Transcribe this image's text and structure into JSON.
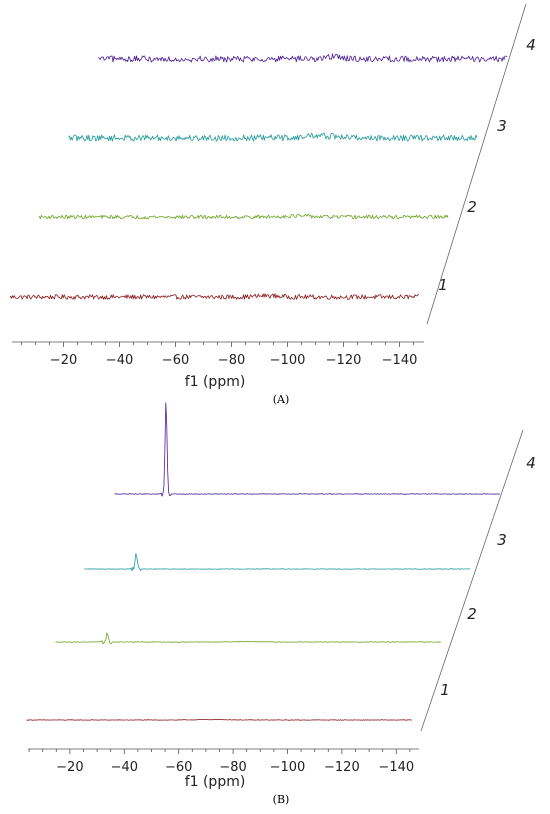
{
  "chart_data": [
    {
      "panel_label": "(A)",
      "type": "line",
      "xlabel": "f1 (ppm)",
      "x_ticks": [
        -20,
        -40,
        -60,
        -80,
        -100,
        -120,
        -140
      ],
      "x_tick_labels": [
        "−20",
        "−40",
        "−60",
        "−80",
        "−100",
        "−120",
        "−140"
      ],
      "xlim": [
        -1,
        -148
      ],
      "grid": false,
      "series": [
        {
          "name": "1",
          "color": "#8b1a1a",
          "x_range": [
            -1,
            -147
          ],
          "features": [
            {
              "center": -93,
              "height": 0.5,
              "width": 4,
              "kind": "hump"
            }
          ],
          "noise": 0.9
        },
        {
          "name": "2",
          "color": "#6aa321",
          "x_range": [
            -1,
            -147
          ],
          "features": [
            {
              "center": -93,
              "height": 0.4,
              "width": 5,
              "kind": "hump"
            }
          ],
          "noise": 0.7
        },
        {
          "name": "3",
          "color": "#239a9a",
          "x_range": [
            -1,
            -147
          ],
          "features": [
            {
              "center": -86,
              "height": 1.0,
              "width": 3,
              "kind": "step"
            }
          ],
          "noise": 1.2
        },
        {
          "name": "4",
          "color": "#4a1d96",
          "x_range": [
            -1,
            -147
          ],
          "features": [
            {
              "center": -85,
              "height": 0.9,
              "width": 3,
              "kind": "hump"
            }
          ],
          "noise": 1.2
        }
      ]
    },
    {
      "panel_label": "(B)",
      "type": "line",
      "xlabel": "f1 (ppm)",
      "x_ticks": [
        -20,
        -40,
        -60,
        -80,
        -100,
        -120,
        -140
      ],
      "x_tick_labels": [
        "−20",
        "−40",
        "−60",
        "−80",
        "−100",
        "−120",
        "−140"
      ],
      "xlim": [
        -3,
        -148
      ],
      "grid": false,
      "series": [
        {
          "name": "1",
          "color": "#8b1a1a",
          "x_range": [
            -4,
            -146
          ],
          "features": [
            {
              "center": -73,
              "height": 0.4,
              "width": 6,
              "kind": "hump"
            }
          ],
          "noise": 0.25
        },
        {
          "name": "2",
          "color": "#6aa321",
          "x_range": [
            -4,
            -146
          ],
          "features": [
            {
              "center": -23,
              "height": 1.0,
              "width": 0.35,
              "kind": "peak"
            },
            {
              "center": -74,
              "height": 0.35,
              "width": 5,
              "kind": "hump"
            }
          ],
          "noise": 0.25
        },
        {
          "name": "3",
          "color": "#239a9a",
          "x_range": [
            -4,
            -146
          ],
          "features": [
            {
              "center": -23,
              "height": 2.0,
              "width": 0.35,
              "kind": "peak"
            }
          ],
          "noise": 0.25
        },
        {
          "name": "4",
          "color": "#4a1d96",
          "x_range": [
            -4,
            -146
          ],
          "features": [
            {
              "center": -23,
              "height": 11.0,
              "width": 0.35,
              "kind": "peak"
            }
          ],
          "noise": 0.25
        }
      ]
    }
  ]
}
